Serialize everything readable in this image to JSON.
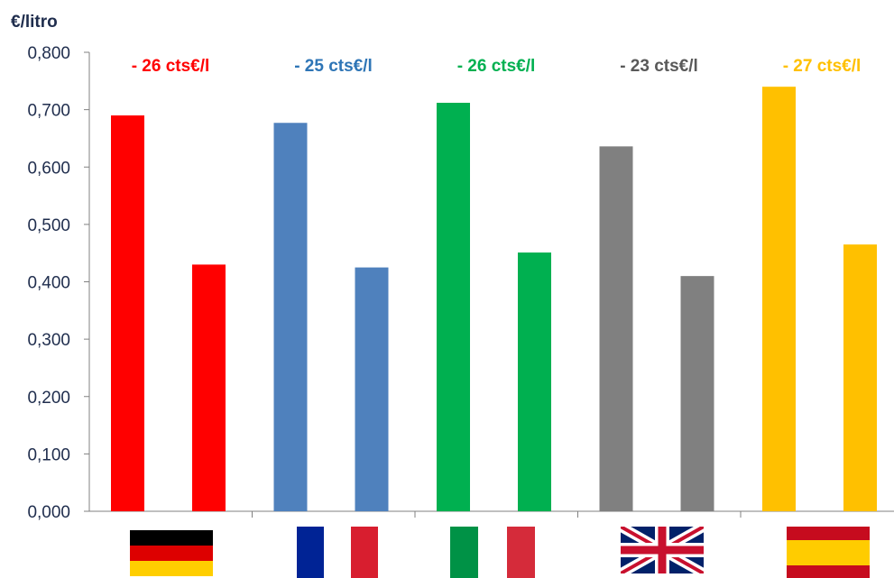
{
  "chart_data": {
    "type": "bar",
    "ylabel": "€/litro",
    "ylim": [
      0,
      0.8
    ],
    "yticks": [
      "0,000",
      "0,100",
      "0,200",
      "0,300",
      "0,400",
      "0,500",
      "0,600",
      "0,700",
      "0,800"
    ],
    "grid": false,
    "categories": [
      "germany",
      "france",
      "italy",
      "united-kingdom",
      "spain"
    ],
    "groups": [
      {
        "country": "germany",
        "color": "#ff0000",
        "values": [
          0.69,
          0.43
        ],
        "annotation": "- 26 cts€/l"
      },
      {
        "country": "france",
        "color": "#4f81bd",
        "values": [
          0.677,
          0.425
        ],
        "annotation": "- 25 cts€/l"
      },
      {
        "country": "italy",
        "color": "#00b050",
        "values": [
          0.712,
          0.451
        ],
        "annotation": "- 26 cts€/l"
      },
      {
        "country": "united-kingdom",
        "color": "#808080",
        "values": [
          0.636,
          0.41
        ],
        "annotation": "- 23 cts€/l"
      },
      {
        "country": "spain",
        "color": "#ffc000",
        "values": [
          0.74,
          0.465
        ],
        "annotation": "- 27 cts€/l"
      }
    ]
  },
  "colors": {
    "axis": "#808080",
    "text": "#1f2d4d",
    "annotation_germany": "#ff0000",
    "annotation_france": "#2e75b6",
    "annotation_italy": "#00b050",
    "annotation_uk": "#595959",
    "annotation_spain": "#ffc000"
  },
  "flags": [
    "germany-flag-icon",
    "france-flag-icon",
    "italy-flag-icon",
    "uk-flag-icon",
    "spain-flag-icon"
  ]
}
